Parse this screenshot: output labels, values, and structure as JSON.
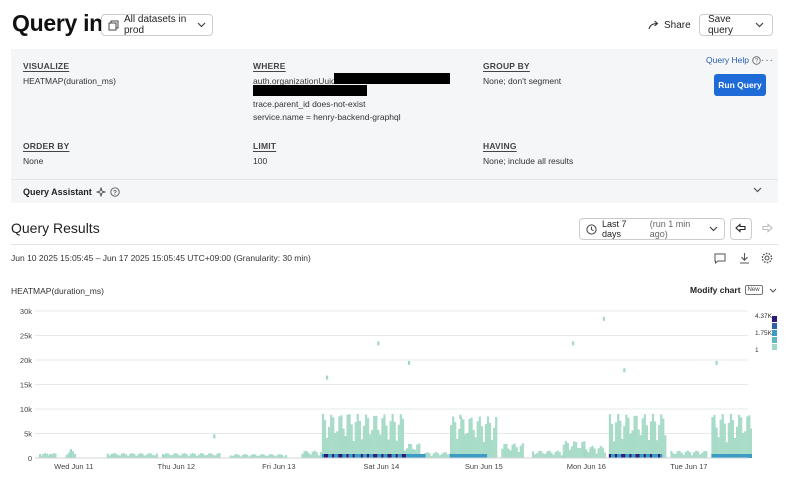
{
  "header": {
    "title": "Query in",
    "dataset_label": "All datasets in prod",
    "share_label": "Share",
    "save_label": "Save query"
  },
  "builder": {
    "visualize": {
      "label": "VISUALIZE",
      "value": "HEATMAP(duration_ms)"
    },
    "where": {
      "label": "WHERE",
      "clauses": [
        "auth.organizationUuid",
        "trace.parent_id does-not-exist",
        "service.name = henry-backend-graphql"
      ]
    },
    "group_by": {
      "label": "GROUP BY",
      "value": "None; don't segment"
    },
    "order_by": {
      "label": "ORDER BY",
      "value": "None"
    },
    "limit": {
      "label": "LIMIT",
      "value": "100"
    },
    "having": {
      "label": "HAVING",
      "value": "None; include all results"
    },
    "help_label": "Query Help",
    "run_label": "Run Query",
    "assistant_label": "Query Assistant"
  },
  "results": {
    "title": "Query Results",
    "time_range": "Last 7 days",
    "time_range_sub": "(run 1 min ago)",
    "date_range": "Jun 10 2025 15:05:45 – Jun 17 2025 15:05:45 UTC+09:00 (Granularity: 30 min)"
  },
  "chart": {
    "title": "HEATMAP(duration_ms)",
    "modify_label": "Modify chart",
    "new_badge": "New",
    "legend": {
      "max": "4.37K",
      "mid": "1.75K",
      "min": "1"
    },
    "colors": {
      "low": "#9fd8c3",
      "mid": "#3a9bc4",
      "high": "#2d1a78",
      "grid": "#e6e8eb"
    }
  },
  "chart_data": {
    "type": "heatmap",
    "title": "HEATMAP(duration_ms)",
    "x_tick_labels": [
      "Wed Jun 11",
      "Thu Jun 12",
      "Fri Jun 13",
      "Sat Jun 14",
      "Sun Jun 15",
      "Mon Jun 16",
      "Tue Jun 17"
    ],
    "y_tick_labels": [
      "0",
      "5k",
      "10k",
      "15k",
      "20k",
      "25k",
      "30k"
    ],
    "ylim": [
      0,
      30000
    ],
    "granularity": "30 min",
    "color_scale": {
      "min": 1,
      "mid": 1750,
      "max": 4370
    },
    "columns": [
      {
        "day": 0.0,
        "duration_ms": 0,
        "count": 1
      },
      {
        "day": 0.1,
        "duration_ms": 0,
        "count": 1
      },
      {
        "day": 0.3,
        "duration_ms": 0,
        "count": 1
      },
      {
        "day": 0.3,
        "duration_ms": 1000,
        "count": 1
      },
      {
        "day": 0.7,
        "duration_ms": 0,
        "count": 1
      },
      {
        "day": 1.2,
        "duration_ms": 0,
        "count": 1
      },
      {
        "day": 1.7,
        "duration_ms": 4000,
        "count": 1
      },
      {
        "day": 2.6,
        "duration_ms": 0,
        "count": 1
      },
      {
        "day": 2.8,
        "duration_ms": 16000,
        "count": 1
      },
      {
        "day": 3.0,
        "duration_ms": 0,
        "count": 4370
      },
      {
        "day": 3.0,
        "duration_ms": 8000,
        "count": 1
      },
      {
        "day": 3.3,
        "duration_ms": 23000,
        "count": 1
      },
      {
        "day": 3.6,
        "duration_ms": 19000,
        "count": 1
      },
      {
        "day": 4.0,
        "duration_ms": 0,
        "count": 1750
      },
      {
        "day": 4.1,
        "duration_ms": 8000,
        "count": 1
      },
      {
        "day": 5.2,
        "duration_ms": 23000,
        "count": 1
      },
      {
        "day": 5.5,
        "duration_ms": 28000,
        "count": 1
      },
      {
        "day": 5.7,
        "duration_ms": 0,
        "count": 4370
      },
      {
        "day": 5.7,
        "duration_ms": 17500,
        "count": 1
      },
      {
        "day": 6.6,
        "duration_ms": 19000,
        "count": 1
      },
      {
        "day": 6.7,
        "duration_ms": 0,
        "count": 1750
      }
    ]
  }
}
